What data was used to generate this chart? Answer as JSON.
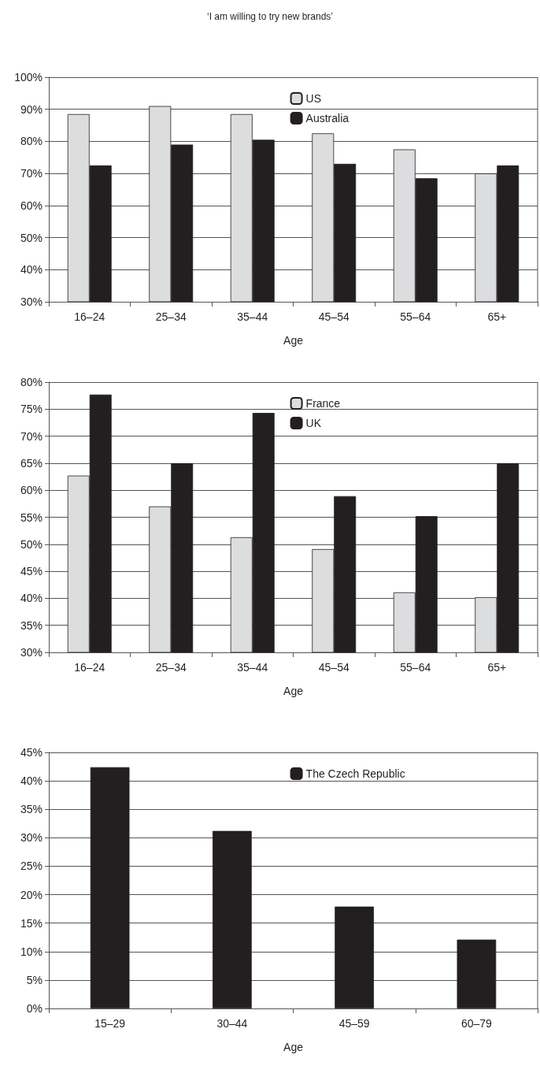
{
  "chart_data": [
    {
      "type": "bar",
      "title": "‘I am willing to try new brands’",
      "xlabel": "Age",
      "categories": [
        "16–24",
        "25–34",
        "35–44",
        "45–54",
        "55–64",
        "65+"
      ],
      "series": [
        {
          "name": "US",
          "color": "#dcdddf",
          "values": [
            88.5,
            91,
            88.5,
            82.5,
            77.5,
            70
          ]
        },
        {
          "name": "Australia",
          "color": "#231f20",
          "values": [
            72.5,
            79,
            80.5,
            73,
            68.5,
            72.5
          ]
        }
      ],
      "ylim": [
        30,
        100
      ],
      "yticks": [
        {
          "value": 30,
          "label": "30%"
        },
        {
          "value": 40,
          "label": "40%"
        },
        {
          "value": 50,
          "label": "50%"
        },
        {
          "value": 60,
          "label": "60%"
        },
        {
          "value": 70,
          "label": "70%"
        },
        {
          "value": 80,
          "label": "80%"
        },
        {
          "value": 90,
          "label": "90%"
        },
        {
          "value": 100,
          "label": "100%"
        }
      ],
      "grid": "y",
      "legend": "top"
    },
    {
      "type": "bar",
      "xlabel": "Age",
      "categories": [
        "16–24",
        "25–34",
        "35–44",
        "45–54",
        "55–64",
        "65+"
      ],
      "series": [
        {
          "name": "France",
          "color": "#dcdddf",
          "values": [
            62.7,
            57,
            51.3,
            49.1,
            41.1,
            40.2
          ]
        },
        {
          "name": "UK",
          "color": "#231f20",
          "values": [
            77.7,
            65,
            74.3,
            58.9,
            55.2,
            65
          ]
        }
      ],
      "ylim": [
        30,
        80
      ],
      "yticks": [
        {
          "value": 30,
          "label": "30%"
        },
        {
          "value": 35,
          "label": "35%"
        },
        {
          "value": 40,
          "label": "40%"
        },
        {
          "value": 45,
          "label": "45%"
        },
        {
          "value": 50,
          "label": "50%"
        },
        {
          "value": 55,
          "label": "55%"
        },
        {
          "value": 60,
          "label": "60%"
        },
        {
          "value": 65,
          "label": "65%"
        },
        {
          "value": 70,
          "label": "70%"
        },
        {
          "value": 75,
          "label": "75%"
        },
        {
          "value": 80,
          "label": "80%"
        }
      ],
      "grid": "y",
      "legend": "top"
    },
    {
      "type": "bar",
      "xlabel": "Age",
      "categories": [
        "15–29",
        "30–44",
        "45–59",
        "60–79"
      ],
      "series": [
        {
          "name": "The Czech Republic",
          "color": "#231f20",
          "values": [
            42.4,
            31.2,
            17.9,
            12.1
          ]
        }
      ],
      "ylim": [
        0,
        45
      ],
      "yticks": [
        {
          "value": 0,
          "label": "0%"
        },
        {
          "value": 5,
          "label": "5%"
        },
        {
          "value": 10,
          "label": "10%"
        },
        {
          "value": 15,
          "label": "15%"
        },
        {
          "value": 20,
          "label": "20%"
        },
        {
          "value": 25,
          "label": "25%"
        },
        {
          "value": 30,
          "label": "30%"
        },
        {
          "value": 35,
          "label": "35%"
        },
        {
          "value": 40,
          "label": "40%"
        },
        {
          "value": 45,
          "label": "45%"
        }
      ],
      "grid": "y",
      "legend": "top"
    }
  ]
}
